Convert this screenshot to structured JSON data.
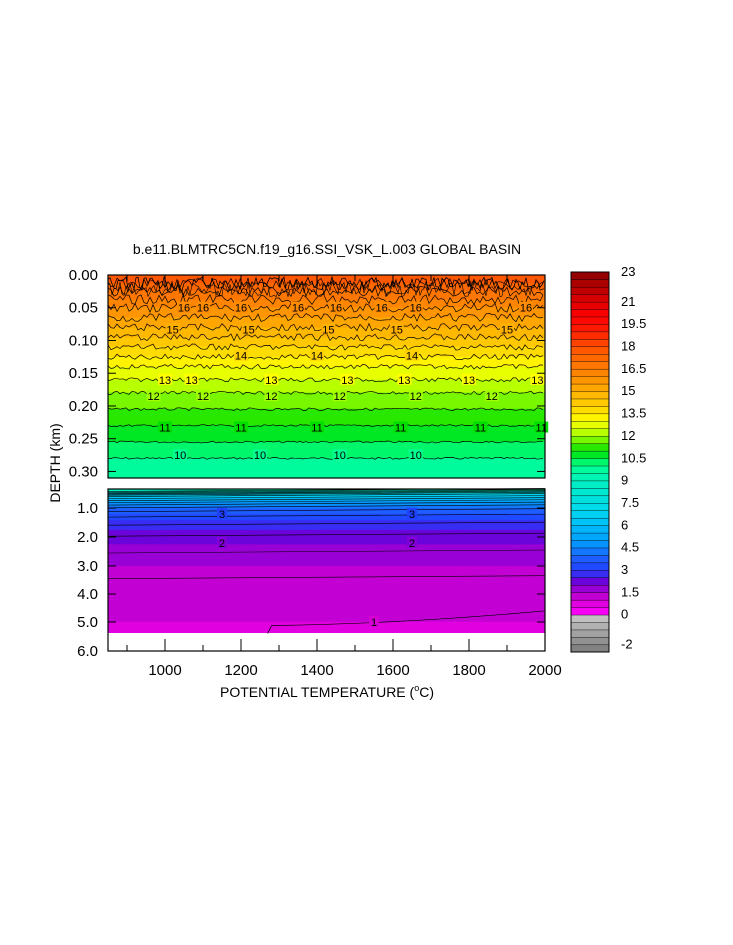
{
  "chart_data": {
    "type": "heatmap",
    "title": "b.e11.BLMTRC5CN.f19_g16.SSI_VSK_L.003 GLOBAL BASIN",
    "xlabel_prefix": "POTENTIAL TEMPERATURE (",
    "xlabel_sup": "o",
    "xlabel_suffix": "C)",
    "ylabel": "DEPTH (km)",
    "x_range": [
      850,
      2000
    ],
    "x_ticks": [
      "1000",
      "1200",
      "1400",
      "1600",
      "1800",
      "2000"
    ],
    "x_tick_values": [
      1000,
      1200,
      1400,
      1600,
      1800,
      2000
    ],
    "upper_panel": {
      "depth_range": [
        0.0,
        0.31
      ],
      "y_ticks": [
        "0.00",
        "0.05",
        "0.10",
        "0.15",
        "0.20",
        "0.25",
        "0.30"
      ],
      "y_tick_values": [
        0.0,
        0.05,
        0.1,
        0.15,
        0.2,
        0.25,
        0.3
      ],
      "temperature_profile": [
        [
          0.0,
          18.0
        ],
        [
          0.02,
          17.2
        ],
        [
          0.05,
          16.0
        ],
        [
          0.08,
          15.0
        ],
        [
          0.11,
          14.0
        ],
        [
          0.14,
          13.0
        ],
        [
          0.18,
          12.0
        ],
        [
          0.23,
          11.0
        ],
        [
          0.28,
          10.0
        ],
        [
          0.31,
          9.8
        ]
      ],
      "contour_labels": [
        {
          "level": "16",
          "depth": 0.05,
          "x": [
            1050,
            1100,
            1200,
            1350,
            1450,
            1570,
            1660,
            1950
          ]
        },
        {
          "level": "15",
          "depth": 0.083,
          "x": [
            1020,
            1220,
            1430,
            1610,
            1900
          ]
        },
        {
          "level": "14",
          "depth": 0.123,
          "x": [
            1200,
            1400,
            1650
          ]
        },
        {
          "level": "13",
          "depth": 0.16,
          "x": [
            1000,
            1070,
            1280,
            1480,
            1630,
            1800,
            1980
          ]
        },
        {
          "level": "12",
          "depth": 0.185,
          "x": [
            970,
            1100,
            1280,
            1460,
            1660,
            1860
          ]
        },
        {
          "level": "11",
          "depth": 0.233,
          "x": [
            1000,
            1200,
            1400,
            1620,
            1830,
            1990
          ]
        },
        {
          "level": "10",
          "depth": 0.275,
          "x": [
            1040,
            1250,
            1460,
            1660
          ]
        }
      ]
    },
    "lower_panel": {
      "depth_range": [
        0.31,
        6.0
      ],
      "y_ticks": [
        "1.0",
        "2.0",
        "3.0",
        "4.0",
        "5.0",
        "6.0"
      ],
      "y_tick_values": [
        1.0,
        2.0,
        3.0,
        4.0,
        5.0,
        6.0
      ],
      "temperature_profile": [
        [
          0.31,
          9.8
        ],
        [
          0.5,
          7.0
        ],
        [
          0.8,
          5.0
        ],
        [
          1.0,
          4.0
        ],
        [
          1.3,
          3.2
        ],
        [
          1.6,
          2.7
        ],
        [
          2.0,
          2.2
        ],
        [
          2.5,
          1.8
        ],
        [
          3.0,
          1.5
        ],
        [
          3.5,
          1.25
        ],
        [
          4.0,
          1.15
        ],
        [
          5.0,
          1.0
        ],
        [
          5.4,
          0.95
        ]
      ],
      "contour_labels": [
        {
          "level": "3",
          "depth": 1.2,
          "x": [
            1150,
            1650
          ]
        },
        {
          "level": "2",
          "depth": 2.2,
          "x": [
            1150,
            1650
          ]
        },
        {
          "level": "1",
          "depth": 5.0,
          "x": [
            1550
          ]
        }
      ]
    },
    "colorbar": {
      "levels": [
        -2.5,
        -2.0,
        -1.5,
        -1.0,
        -0.5,
        0.0,
        0.5,
        1.0,
        1.5,
        2.0,
        2.5,
        3.0,
        3.5,
        4.0,
        4.5,
        5.0,
        5.5,
        6.0,
        6.5,
        7.0,
        7.5,
        8.0,
        8.5,
        9.0,
        9.5,
        10.0,
        10.5,
        11.0,
        11.5,
        12.0,
        12.5,
        13.0,
        13.5,
        14.0,
        14.5,
        15.0,
        15.5,
        16.0,
        16.5,
        17.0,
        17.5,
        18.0,
        18.5,
        19.0,
        19.5,
        20.0,
        20.5,
        21.0,
        21.5,
        22.0,
        22.5,
        23.0
      ],
      "tick_labels": [
        "23",
        "21",
        "19.5",
        "18",
        "16.5",
        "15",
        "13.5",
        "12",
        "10.5",
        "9",
        "7.5",
        "6",
        "4.5",
        "3",
        "1.5",
        "0",
        "-2"
      ],
      "tick_values": [
        23,
        21,
        19.5,
        18,
        16.5,
        15,
        13.5,
        12,
        10.5,
        9,
        7.5,
        6,
        4.5,
        3,
        1.5,
        0,
        -2
      ],
      "color_stops": [
        [
          -2.5,
          "#7a7a7a"
        ],
        [
          0.0,
          "#c8c8c8"
        ],
        [
          0.1,
          "#ff00ff"
        ],
        [
          1.0,
          "#d400d4"
        ],
        [
          1.5,
          "#b000d4"
        ],
        [
          2.2,
          "#7000d8"
        ],
        [
          3.0,
          "#2040ff"
        ],
        [
          3.8,
          "#1e5fff"
        ],
        [
          5.0,
          "#00a0ff"
        ],
        [
          7.0,
          "#00d8f0"
        ],
        [
          9.0,
          "#00f0c0"
        ],
        [
          10.0,
          "#00ff90"
        ],
        [
          11.0,
          "#00e000"
        ],
        [
          12.0,
          "#a0ff00"
        ],
        [
          13.0,
          "#ffff00"
        ],
        [
          14.0,
          "#ffd000"
        ],
        [
          15.0,
          "#ffb000"
        ],
        [
          16.0,
          "#ff8c00"
        ],
        [
          17.0,
          "#ff7000"
        ],
        [
          18.0,
          "#ff5000"
        ],
        [
          19.0,
          "#ff2000"
        ],
        [
          20.0,
          "#ff0000"
        ],
        [
          21.0,
          "#e00000"
        ],
        [
          22.0,
          "#b40000"
        ],
        [
          23.0,
          "#8b0000"
        ]
      ]
    }
  }
}
